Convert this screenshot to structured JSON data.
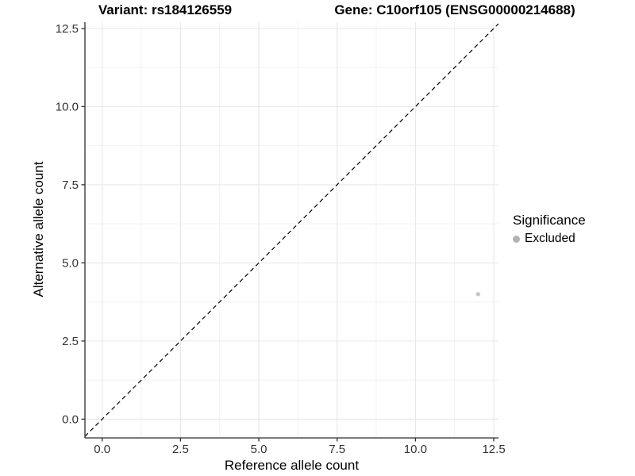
{
  "chart_data": {
    "type": "scatter",
    "title_left": "Variant: rs184126559",
    "title_right": "Gene: C10orf105 (ENSG00000214688)",
    "xlabel": "Reference allele count",
    "ylabel": "Alternative allele count",
    "xlim": [
      -0.55,
      12.65
    ],
    "ylim": [
      -0.6,
      12.7
    ],
    "x_ticks": [
      0,
      2.5,
      5,
      7.5,
      10,
      12.5
    ],
    "x_tick_labels": [
      "0.0",
      "2.5",
      "5.0",
      "7.5",
      "10.0",
      "12.5"
    ],
    "y_ticks": [
      0,
      2.5,
      5,
      7.5,
      10,
      12.5
    ],
    "y_tick_labels": [
      "0.0",
      "2.5",
      "5.0",
      "7.5",
      "10.0",
      "12.5"
    ],
    "minor_tick_interval": 1.25,
    "grid": true,
    "reference_line": {
      "type": "identity",
      "style": "dashed",
      "color": "#000000"
    },
    "series": [
      {
        "name": "Excluded",
        "color": "#c6c6c6",
        "points": [
          {
            "x": 12,
            "y": 4
          }
        ]
      }
    ],
    "legend": {
      "title": "Significance",
      "position": "right",
      "items": [
        {
          "label": "Excluded",
          "color": "#b3b3b3"
        }
      ]
    },
    "colors": {
      "grid_major": "#e7e7e7",
      "grid_minor": "#f0f0f0",
      "axis_line": "#2e2e2e",
      "tick_mark": "#2e2e2e",
      "tick_label": "#333333"
    }
  }
}
